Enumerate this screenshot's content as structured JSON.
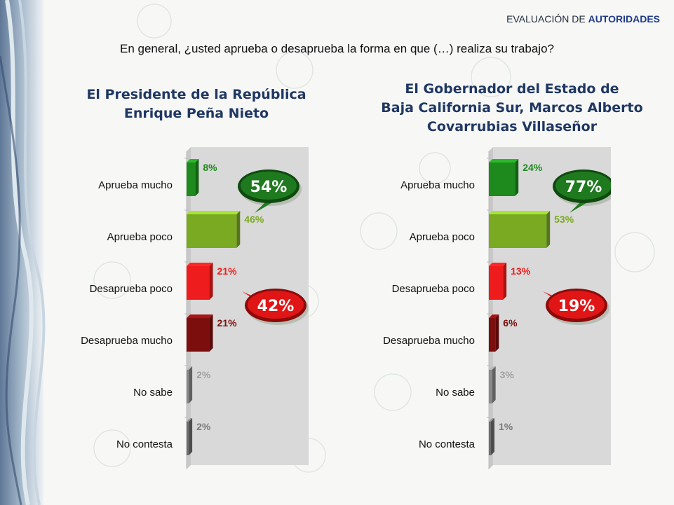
{
  "header": {
    "prefix": "EVALUACIÓN DE ",
    "emphasis": "AUTORIDADES"
  },
  "question": "En general, ¿usted aprueba o desaprueba la forma en que (…) realiza su trabajo?",
  "colors": {
    "aprueba_mucho": "#1e8a1e",
    "aprueba_poco": "#7aaa22",
    "desaprueba_poco": "#ee1c1c",
    "desaprueba_mucho": "#7d0e0e",
    "no_sabe": "#8a8a8a",
    "no_contesta": "#6e6e6e",
    "panel": "#d9d9d9"
  },
  "chart_data": [
    {
      "type": "bar",
      "title_lines": [
        "El Presidente de la República",
        "Enrique Peña Nieto"
      ],
      "categories": [
        "Aprueba mucho",
        "Aprueba poco",
        "Desaprueba poco",
        "Desaprueba mucho",
        "No sabe",
        "No contesta"
      ],
      "values": [
        8,
        46,
        21,
        21,
        2,
        2
      ],
      "value_labels": [
        "8%",
        "46%",
        "21%",
        "21%",
        "2%",
        "2%"
      ],
      "xlim": [
        0,
        100
      ],
      "callouts": [
        {
          "text": "54%",
          "group": "aprueba"
        },
        {
          "text": "42%",
          "group": "desaprueba"
        }
      ]
    },
    {
      "type": "bar",
      "title_lines": [
        "El Gobernador del Estado de",
        "Baja California Sur, Marcos Alberto",
        "Covarrubias Villaseñor"
      ],
      "categories": [
        "Aprueba mucho",
        "Aprueba poco",
        "Desaprueba poco",
        "Desaprueba mucho",
        "No sabe",
        "No contesta"
      ],
      "values": [
        24,
        53,
        13,
        6,
        3,
        1
      ],
      "value_labels": [
        "24%",
        "53%",
        "13%",
        "6%",
        "3%",
        "1%"
      ],
      "xlim": [
        0,
        100
      ],
      "callouts": [
        {
          "text": "77%",
          "group": "aprueba"
        },
        {
          "text": "19%",
          "group": "desaprueba"
        }
      ]
    }
  ]
}
